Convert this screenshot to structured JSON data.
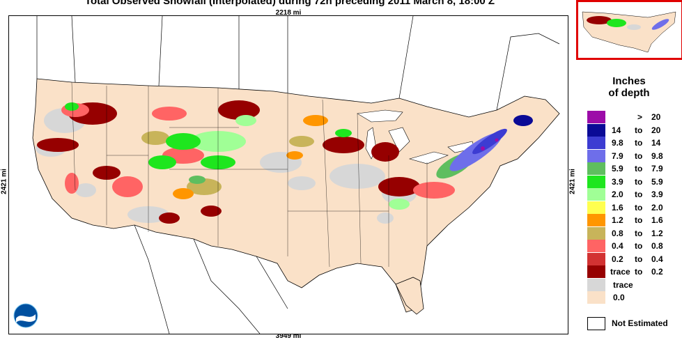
{
  "title": "Total Observed Snowfall (Interpolated) during 72h preceding 2011 March 8, 18:00 Z",
  "dims": {
    "top": "2218 mi",
    "bottom": "3949 mi",
    "left": "2421 mi",
    "right": "2421 mi"
  },
  "legend": {
    "heading_line1": "Inches",
    "heading_line2": "of depth",
    "rows": [
      {
        "lo": "",
        "to": ">",
        "hi": "20",
        "color": "#9c0ca8"
      },
      {
        "lo": "14",
        "to": "to",
        "hi": "20",
        "color": "#0a0a96"
      },
      {
        "lo": "9.8",
        "to": "to",
        "hi": "14",
        "color": "#3c3cd2"
      },
      {
        "lo": "7.9",
        "to": "to",
        "hi": "9.8",
        "color": "#6e6eea"
      },
      {
        "lo": "5.9",
        "to": "to",
        "hi": "7.9",
        "color": "#5fbe5f"
      },
      {
        "lo": "3.9",
        "to": "to",
        "hi": "5.9",
        "color": "#1ee61e"
      },
      {
        "lo": "2.0",
        "to": "to",
        "hi": "3.9",
        "color": "#a0ff96"
      },
      {
        "lo": "1.6",
        "to": "to",
        "hi": "2.0",
        "color": "#ffff50"
      },
      {
        "lo": "1.2",
        "to": "to",
        "hi": "1.6",
        "color": "#ff9600"
      },
      {
        "lo": "0.8",
        "to": "to",
        "hi": "1.2",
        "color": "#c8b45a"
      },
      {
        "lo": "0.4",
        "to": "to",
        "hi": "0.8",
        "color": "#ff6464"
      },
      {
        "lo": "0.2",
        "to": "to",
        "hi": "0.4",
        "color": "#d23232"
      },
      {
        "lo": "trace",
        "to": "to",
        "hi": "0.2",
        "color": "#960000"
      },
      {
        "lo": "trace",
        "to": "",
        "hi": "",
        "color": "#d7d7d7"
      },
      {
        "lo": "0.0",
        "to": "",
        "hi": "",
        "color": "#fae1c8"
      }
    ],
    "not_estimated": "Not Estimated"
  },
  "logo": "NOAA",
  "colors": {
    "frame": "#000000",
    "inset_border": "#e00000",
    "no_snow": "#fae1c8",
    "trace": "#d7d7d7"
  }
}
